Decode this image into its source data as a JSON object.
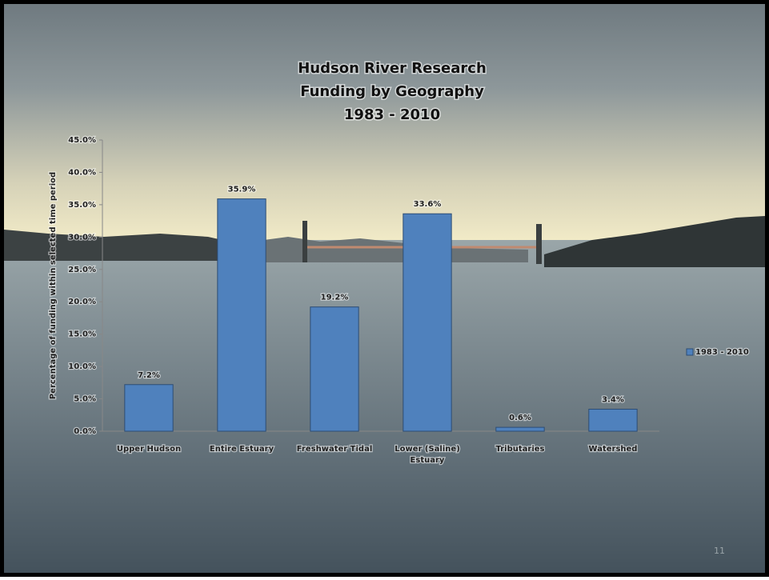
{
  "chart_data": {
    "type": "bar",
    "title": [
      "Hudson River Research",
      "Funding by Geography",
      "1983 - 2010"
    ],
    "y_label": "Percentage of funding within selected time period",
    "categories": [
      "Upper Hudson",
      "Entire Estuary",
      "Freshwater Tidal",
      "Lower (Saline) Estuary",
      "Tributaries",
      "Watershed"
    ],
    "series": [
      {
        "name": "1983 - 2010",
        "color": "#4f81bd",
        "values": [
          7.2,
          35.9,
          19.2,
          33.6,
          0.6,
          3.4
        ],
        "value_labels": [
          "7.2%",
          "35.9%",
          "19.2%",
          "33.6%",
          "0.6%",
          "3.4%"
        ]
      }
    ],
    "ylim": [
      0,
      45
    ],
    "yticks": [
      {
        "value": 0,
        "label": "0.0%"
      },
      {
        "value": 5,
        "label": "5.0%"
      },
      {
        "value": 10,
        "label": "10.0%"
      },
      {
        "value": 15,
        "label": "15.0%"
      },
      {
        "value": 20,
        "label": "20.0%"
      },
      {
        "value": 25,
        "label": "25.0%"
      },
      {
        "value": 30,
        "label": "30.0%"
      },
      {
        "value": 35,
        "label": "35.0%"
      },
      {
        "value": 40,
        "label": "40.0%"
      },
      {
        "value": 45,
        "label": "45.0%"
      }
    ],
    "legend": "right"
  },
  "page_number": "11"
}
